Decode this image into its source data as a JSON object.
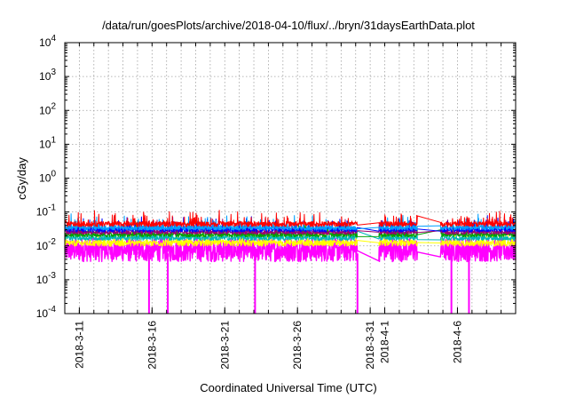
{
  "chart_data": {
    "type": "line",
    "title": "/data/run/goesPlots/archive/2018-04-10/flux/../bryn/31daysEarthData.plot",
    "xlabel": "Coordinated Universal Time (UTC)",
    "ylabel": "cGy/day",
    "yscale": "log",
    "ylim": [
      0.0001,
      10000
    ],
    "xlim": [
      "2018-03-10 00:00",
      "2018-04-10 00:00"
    ],
    "grid": true,
    "legend": "none",
    "y_ticks": [
      {
        "value": 0.0001,
        "base": "10",
        "exp": "-4"
      },
      {
        "value": 0.001,
        "base": "10",
        "exp": "-3"
      },
      {
        "value": 0.01,
        "base": "10",
        "exp": "-2"
      },
      {
        "value": 0.1,
        "base": "10",
        "exp": "-1"
      },
      {
        "value": 1,
        "base": "10",
        "exp": "0"
      },
      {
        "value": 10,
        "base": "10",
        "exp": "1"
      },
      {
        "value": 100,
        "base": "10",
        "exp": "2"
      },
      {
        "value": 1000,
        "base": "10",
        "exp": "3"
      },
      {
        "value": 10000,
        "base": "10",
        "exp": "4"
      }
    ],
    "x_ticks": [
      {
        "date": "2018-03-11",
        "label": "2018-3-11"
      },
      {
        "date": "2018-03-16",
        "label": "2018-3-16"
      },
      {
        "date": "2018-03-21",
        "label": "2018-3-21"
      },
      {
        "date": "2018-03-26",
        "label": "2018-3-26"
      },
      {
        "date": "2018-03-31",
        "label": "2018-3-31"
      },
      {
        "date": "2018-04-01",
        "label": "2018-4-1"
      },
      {
        "date": "2018-04-06",
        "label": "2018-4-6"
      }
    ],
    "data_gaps": [
      {
        "start": "2018-03-30 03:00",
        "end": "2018-03-31 14:00"
      },
      {
        "start": "2018-04-03 06:00",
        "end": "2018-04-04 20:00"
      }
    ],
    "series": [
      {
        "color": "#ff00ff",
        "typical": 0.006,
        "spread": 0.55
      },
      {
        "color": "#ffff00",
        "typical": 0.012,
        "spread": 0.18
      },
      {
        "color": "#00b8b8",
        "typical": 0.017,
        "spread": 0.14
      },
      {
        "color": "#00a000",
        "typical": 0.021,
        "spread": 0.12
      },
      {
        "color": "#a00070",
        "typical": 0.025,
        "spread": 0.12
      },
      {
        "color": "#0000ff",
        "typical": 0.03,
        "spread": 0.14
      },
      {
        "color": "#00a0ff",
        "typical": 0.034,
        "spread": 0.14
      },
      {
        "color": "#ff0000",
        "typical": 0.044,
        "spread": 0.15
      }
    ],
    "dropouts": [
      {
        "time": "2018-03-15 19:00",
        "min": 0.0001
      },
      {
        "time": "2018-03-17 02:00",
        "min": 0.0001
      },
      {
        "time": "2018-03-23 02:00",
        "min": 0.0001
      },
      {
        "time": "2018-03-30 03:00",
        "min": 0.0001
      },
      {
        "time": "2018-04-05 14:00",
        "min": 0.0001
      },
      {
        "time": "2018-04-06 19:00",
        "min": 0.0001
      }
    ]
  }
}
